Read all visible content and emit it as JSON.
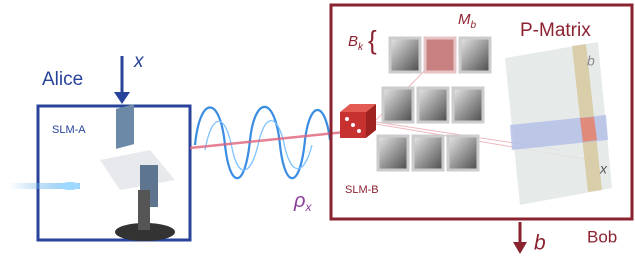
{
  "alice": {
    "label": "Alice",
    "input": "x",
    "slm": "SLM-A"
  },
  "state": {
    "symbol": "ρ",
    "subscript": "x"
  },
  "bob": {
    "label": "Bob",
    "slm": "SLM-B",
    "set_label": {
      "symbol": "B",
      "subscript": "k",
      "brace": "{"
    },
    "measurement": {
      "symbol": "M",
      "subscript": "b"
    },
    "matrix_title": "P-Matrix",
    "matrix_col": "b",
    "matrix_row": "x",
    "output": "b"
  }
}
